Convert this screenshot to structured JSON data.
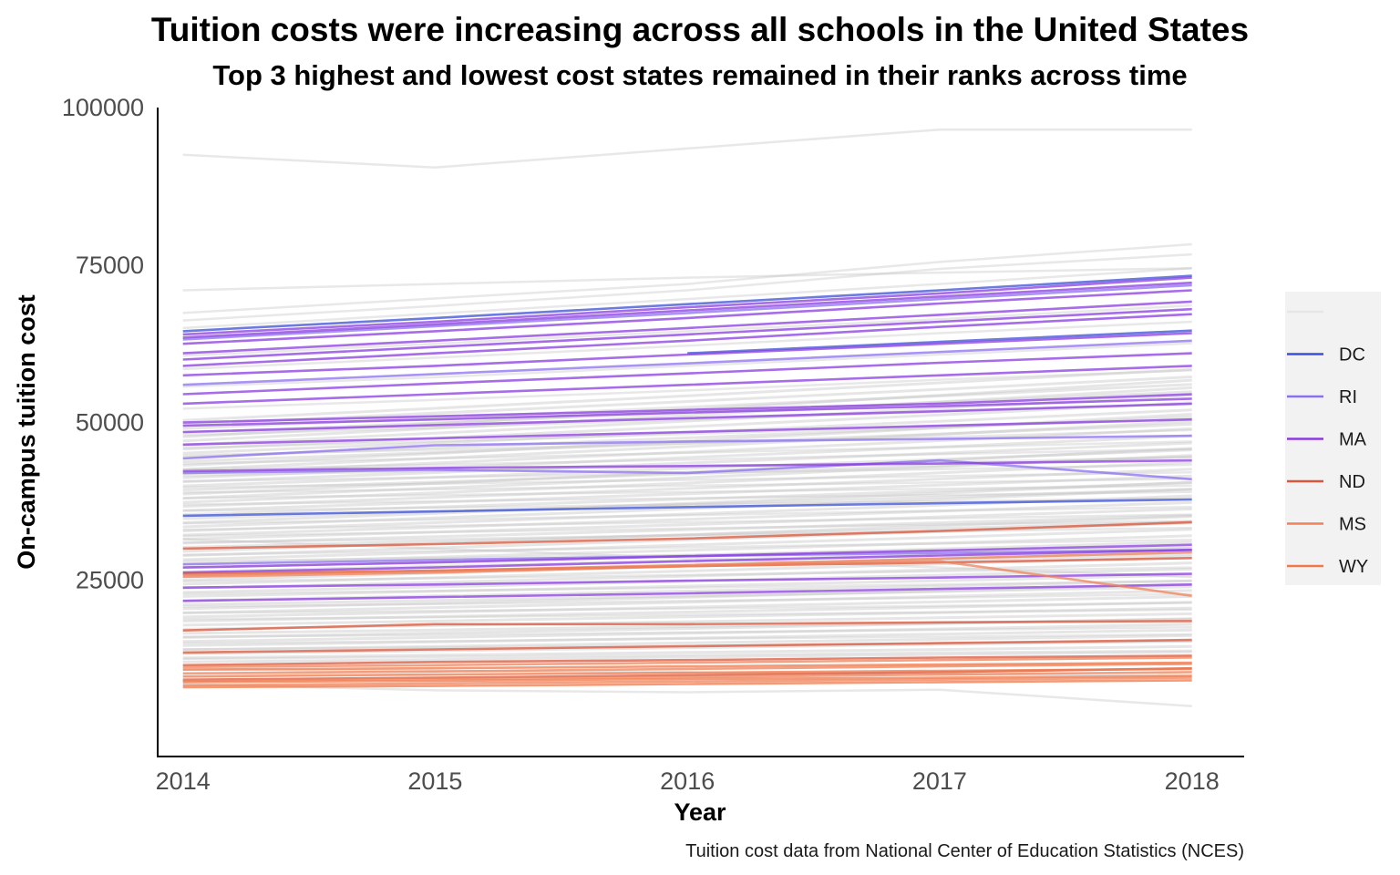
{
  "chart_data": {
    "type": "line",
    "title": "Tuition costs were increasing across all schools in the United States",
    "subtitle": "Top 3 highest and lowest cost states remained in their ranks across time",
    "xlabel": "Year",
    "ylabel": "On-campus tuition cost",
    "caption": "Tuition cost data from National Center of Education Statistics (NCES)",
    "x": [
      2014,
      2015,
      2016,
      2017,
      2018
    ],
    "xlim": [
      2013.9,
      2018.2
    ],
    "ylim": [
      -3000,
      100000
    ],
    "y_ticks": [
      25000,
      50000,
      75000,
      100000
    ],
    "x_ticks": [
      2014,
      2015,
      2016,
      2017,
      2018
    ],
    "grid": false,
    "legend_position": "right",
    "legend": [
      {
        "label": "",
        "color": "#e6e6e6"
      },
      {
        "label": "DC",
        "color": "#3a4fd6"
      },
      {
        "label": "RI",
        "color": "#8c6ff0"
      },
      {
        "label": "MA",
        "color": "#8a3be0"
      },
      {
        "label": "ND",
        "color": "#d9563a"
      },
      {
        "label": "MS",
        "color": "#f0825a"
      },
      {
        "label": "WY",
        "color": "#f07848"
      }
    ],
    "series": [
      {
        "name": "DC",
        "color": "#3a4fd6",
        "values": [
          64500,
          66600,
          68800,
          71000,
          73300
        ]
      },
      {
        "name": "DC",
        "color": "#3a4fd6",
        "values": [
          35200,
          35900,
          36600,
          37200,
          37800
        ]
      },
      {
        "name": "DC",
        "color": "#3a4fd6",
        "values": null,
        "x": [
          2016,
          2017,
          2018
        ],
        "partial": [
          61000,
          62800,
          64600
        ]
      },
      {
        "name": "RI",
        "color": "#8c6ff0",
        "values": [
          63200,
          65300,
          67400,
          69600,
          71800
        ]
      },
      {
        "name": "RI",
        "color": "#8c6ff0",
        "values": [
          56000,
          57700,
          59400,
          61200,
          63000
        ]
      },
      {
        "name": "RI",
        "color": "#8c6ff0",
        "values": [
          44300,
          46400,
          47000,
          47400,
          47900
        ]
      },
      {
        "name": "RI",
        "color": "#8c6ff0",
        "values": [
          42000,
          42500,
          42000,
          44000,
          41000
        ]
      },
      {
        "name": "RI",
        "color": "#8c6ff0",
        "values": [
          27500,
          28200,
          28800,
          29300,
          29800
        ]
      },
      {
        "name": "MA",
        "color": "#8a3be0",
        "values": [
          64000,
          66000,
          68300,
          70500,
          73000
        ]
      },
      {
        "name": "MA",
        "color": "#8a3be0",
        "values": [
          63500,
          65600,
          67800,
          70000,
          72200
        ]
      },
      {
        "name": "MA",
        "color": "#8a3be0",
        "values": [
          62500,
          64500,
          66600,
          68900,
          71000
        ]
      },
      {
        "name": "MA",
        "color": "#8a3be0",
        "values": [
          61000,
          63000,
          65000,
          67100,
          69200
        ]
      },
      {
        "name": "MA",
        "color": "#8a3be0",
        "values": [
          60000,
          62000,
          64000,
          66000,
          68000
        ]
      },
      {
        "name": "MA",
        "color": "#8a3be0",
        "values": [
          59000,
          61000,
          63000,
          65200,
          67200
        ]
      },
      {
        "name": "MA",
        "color": "#8a3be0",
        "values": [
          57500,
          59000,
          60800,
          62500,
          64200
        ]
      },
      {
        "name": "MA",
        "color": "#8a3be0",
        "values": [
          54500,
          56200,
          57800,
          59500,
          61000
        ]
      },
      {
        "name": "MA",
        "color": "#8a3be0",
        "values": [
          53000,
          54500,
          56000,
          57500,
          59000
        ]
      },
      {
        "name": "MA",
        "color": "#8a3be0",
        "values": [
          50000,
          51000,
          52000,
          53000,
          54500
        ]
      },
      {
        "name": "MA",
        "color": "#8a3be0",
        "values": [
          49500,
          50500,
          51600,
          52600,
          53800
        ]
      },
      {
        "name": "MA",
        "color": "#8a3be0",
        "values": [
          48500,
          49600,
          50700,
          51800,
          53000
        ]
      },
      {
        "name": "MA",
        "color": "#8a3be0",
        "values": [
          46500,
          47500,
          48500,
          49500,
          50500
        ]
      },
      {
        "name": "MA",
        "color": "#8a3be0",
        "values": [
          42300,
          42800,
          43100,
          43500,
          44000
        ]
      },
      {
        "name": "MA",
        "color": "#8a3be0",
        "values": [
          27000,
          27800,
          28800,
          29700,
          30600
        ]
      },
      {
        "name": "MA",
        "color": "#8a3be0",
        "values": [
          26200,
          27000,
          28000,
          28900,
          29800
        ]
      },
      {
        "name": "MA",
        "color": "#8a3be0",
        "values": [
          23800,
          24300,
          24900,
          25400,
          26000
        ]
      },
      {
        "name": "MA",
        "color": "#8a3be0",
        "values": [
          21700,
          22300,
          22900,
          23600,
          24300
        ]
      },
      {
        "name": "ND",
        "color": "#d9563a",
        "values": [
          30000,
          30700,
          31600,
          32800,
          34200
        ]
      },
      {
        "name": "ND",
        "color": "#d9563a",
        "values": [
          26000,
          26500,
          27200,
          27800,
          28500
        ]
      },
      {
        "name": "ND",
        "color": "#d9563a",
        "values": [
          17000,
          18000,
          18000,
          18300,
          18500
        ]
      },
      {
        "name": "ND",
        "color": "#d9563a",
        "values": [
          13500,
          14000,
          14500,
          15000,
          15500
        ]
      },
      {
        "name": "ND",
        "color": "#d9563a",
        "values": [
          11500,
          12000,
          12300,
          12700,
          13000
        ]
      },
      {
        "name": "ND",
        "color": "#d9563a",
        "values": [
          9200,
          9500,
          9900,
          10400,
          11000
        ]
      },
      {
        "name": "MS",
        "color": "#f0825a",
        "values": [
          25500,
          26200,
          27200,
          28000,
          22500
        ]
      },
      {
        "name": "MS",
        "color": "#f0825a",
        "values": [
          25800,
          26500,
          27400,
          28400,
          29400
        ]
      },
      {
        "name": "MS",
        "color": "#f0825a",
        "values": [
          11200,
          11500,
          11900,
          12300,
          12700
        ]
      },
      {
        "name": "MS",
        "color": "#f0825a",
        "values": [
          10200,
          10500,
          10900,
          11300,
          11700
        ]
      },
      {
        "name": "MS",
        "color": "#f0825a",
        "values": [
          9000,
          9300,
          9600,
          10000,
          10400
        ]
      },
      {
        "name": "MS",
        "color": "#f0825a",
        "values": [
          8300,
          8600,
          8900,
          9200,
          9500
        ]
      },
      {
        "name": "WY",
        "color": "#f07848",
        "values": [
          10800,
          11000,
          11300,
          11600,
          11900
        ]
      },
      {
        "name": "WY",
        "color": "#f07848",
        "values": [
          9700,
          10000,
          10300,
          10600,
          10900
        ]
      },
      {
        "name": "WY",
        "color": "#f07848",
        "values": [
          8800,
          9000,
          9300,
          9500,
          9800
        ]
      },
      {
        "name": "WY",
        "color": "#f07848",
        "values": [
          8000,
          8200,
          8500,
          8800,
          9100
        ]
      }
    ],
    "background_series": [
      {
        "values": [
          92500,
          90500,
          93500,
          96500,
          96500
        ]
      },
      {
        "values": [
          67400,
          69700,
          72000,
          75500,
          78300
        ]
      },
      {
        "values": [
          66200,
          68500,
          71000,
          74400,
          76700
        ]
      },
      {
        "values": [
          65000,
          67300,
          69600,
          72000,
          74500
        ]
      },
      {
        "values": [
          60600,
          62500,
          64500,
          66400,
          68600
        ]
      },
      {
        "values": [
          58500,
          60300,
          62200,
          64200,
          66000
        ]
      },
      {
        "values": [
          55700,
          57200,
          59000,
          60800,
          62600
        ]
      },
      {
        "values": [
          52200,
          53600,
          55100,
          56800,
          58300
        ]
      },
      {
        "values": [
          48000,
          49200,
          50500,
          51700,
          53000
        ]
      },
      {
        "values": [
          46000,
          47000,
          48200,
          49400,
          50500
        ]
      },
      {
        "values": [
          44800,
          45700,
          46700,
          47700,
          48800
        ]
      },
      {
        "values": [
          43500,
          44300,
          45200,
          46100,
          47000
        ]
      },
      {
        "values": [
          42600,
          43300,
          44100,
          45000,
          45800
        ]
      },
      {
        "values": [
          41600,
          42300,
          43000,
          43700,
          44500
        ]
      },
      {
        "values": [
          40700,
          41300,
          42000,
          42600,
          43300
        ]
      },
      {
        "values": [
          39700,
          40300,
          40900,
          41500,
          42100
        ]
      },
      {
        "values": [
          38900,
          39400,
          40000,
          40500,
          41100
        ]
      },
      {
        "values": [
          38000,
          38500,
          39000,
          39500,
          40000
        ]
      },
      {
        "values": [
          37000,
          37500,
          38000,
          38500,
          39000
        ]
      },
      {
        "values": [
          36000,
          36500,
          37000,
          37500,
          38000
        ]
      },
      {
        "values": [
          34000,
          34600,
          35300,
          36000,
          36600
        ]
      },
      {
        "values": [
          33000,
          33600,
          34200,
          34800,
          35400
        ]
      },
      {
        "values": [
          32000,
          32600,
          33200,
          33800,
          34400
        ]
      },
      {
        "values": [
          31000,
          31500,
          32100,
          32700,
          33300
        ]
      },
      {
        "values": [
          29000,
          29600,
          30200,
          30800,
          31400
        ]
      },
      {
        "values": [
          28000,
          28500,
          29000,
          29600,
          30200
        ]
      },
      {
        "values": [
          24800,
          25300,
          25800,
          26400,
          27000
        ]
      },
      {
        "values": [
          22800,
          23300,
          23800,
          24300,
          24900
        ]
      },
      {
        "values": [
          20800,
          21200,
          21700,
          22200,
          22800
        ]
      },
      {
        "values": [
          19800,
          20100,
          20500,
          20900,
          21400
        ]
      },
      {
        "values": [
          18800,
          19100,
          19500,
          19900,
          20300
        ]
      },
      {
        "values": [
          16000,
          16300,
          16700,
          17100,
          17500
        ]
      },
      {
        "values": [
          15000,
          15300,
          15700,
          16000,
          16400
        ]
      },
      {
        "values": [
          14000,
          14300,
          14600,
          15000,
          15300
        ]
      },
      {
        "values": [
          12500,
          12800,
          13100,
          13500,
          13800
        ]
      },
      {
        "values": [
          10800,
          10600,
          10400,
          10100,
          9800
        ]
      },
      {
        "values": [
          8500,
          7500,
          7200,
          7600,
          5000
        ]
      },
      {
        "values": [
          31500,
          30000,
          28500,
          27000,
          25500
        ]
      },
      {
        "values": [
          71000,
          72000,
          73000,
          73800,
          74500
        ]
      }
    ]
  }
}
